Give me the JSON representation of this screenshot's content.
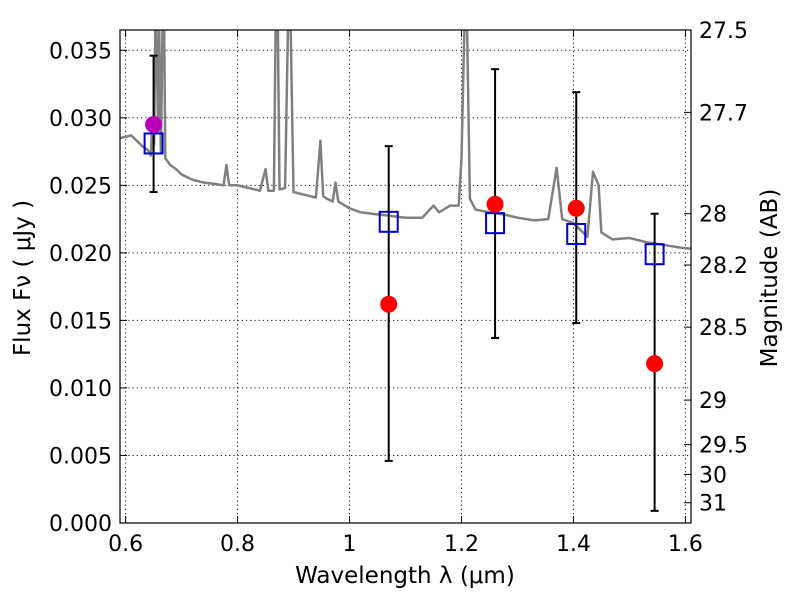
{
  "chart_data": {
    "type": "scatter",
    "xlabel": "Wavelength  λ (μm)",
    "ylabel_left": "Flux  Fν  ( μJy )",
    "ylabel_right": "Magnitude (AB)",
    "xlim": [
      0.59,
      1.61
    ],
    "ylim": [
      0.0,
      0.0365
    ],
    "x_ticks": [
      0.6,
      0.8,
      1.0,
      1.2,
      1.4,
      1.6
    ],
    "x_tick_labels": [
      "0.6",
      "0.8",
      "1",
      "1.2",
      "1.4",
      "1.6"
    ],
    "y_ticks": [
      0.0,
      0.005,
      0.01,
      0.015,
      0.02,
      0.025,
      0.03,
      0.035
    ],
    "y_tick_labels": [
      "0.000",
      "0.005",
      "0.010",
      "0.015",
      "0.020",
      "0.025",
      "0.030",
      "0.035"
    ],
    "right_ticks": [
      {
        "flux": 0.0365,
        "label": "27.5"
      },
      {
        "flux": 0.0304,
        "label": "27.7"
      },
      {
        "flux": 0.0229,
        "label": "28"
      },
      {
        "flux": 0.0191,
        "label": "28.2"
      },
      {
        "flux": 0.0145,
        "label": "28.5"
      },
      {
        "flux": 0.0091,
        "label": "29"
      },
      {
        "flux": 0.0058,
        "label": "29.5"
      },
      {
        "flux": 0.0036,
        "label": "30"
      },
      {
        "flux": 0.0015,
        "label": "31"
      }
    ],
    "grid": true,
    "series": [
      {
        "kind": "spectrum",
        "color": "#808080",
        "points": [
          [
            0.59,
            0.0285
          ],
          [
            0.61,
            0.0287
          ],
          [
            0.62,
            0.0283
          ],
          [
            0.63,
            0.0279
          ],
          [
            0.64,
            0.0276
          ],
          [
            0.645,
            0.0272
          ],
          [
            0.648,
            0.03
          ],
          [
            0.651,
            0.028
          ],
          [
            0.653,
            0.0365
          ],
          [
            0.655,
            0.0365
          ],
          [
            0.658,
            0.029
          ],
          [
            0.66,
            0.0365
          ],
          [
            0.663,
            0.0275
          ],
          [
            0.666,
            0.0365
          ],
          [
            0.669,
            0.0365
          ],
          [
            0.671,
            0.027
          ],
          [
            0.68,
            0.0265
          ],
          [
            0.69,
            0.0262
          ],
          [
            0.7,
            0.0258
          ],
          [
            0.72,
            0.0254
          ],
          [
            0.74,
            0.0252
          ],
          [
            0.76,
            0.0251
          ],
          [
            0.775,
            0.025
          ],
          [
            0.78,
            0.0265
          ],
          [
            0.785,
            0.025
          ],
          [
            0.8,
            0.025
          ],
          [
            0.82,
            0.0248
          ],
          [
            0.84,
            0.0246
          ],
          [
            0.85,
            0.0262
          ],
          [
            0.855,
            0.0246
          ],
          [
            0.865,
            0.0246
          ],
          [
            0.868,
            0.0365
          ],
          [
            0.872,
            0.0365
          ],
          [
            0.875,
            0.0247
          ],
          [
            0.885,
            0.0248
          ],
          [
            0.89,
            0.0365
          ],
          [
            0.895,
            0.0365
          ],
          [
            0.9,
            0.0245
          ],
          [
            0.92,
            0.0243
          ],
          [
            0.94,
            0.0241
          ],
          [
            0.948,
            0.0283
          ],
          [
            0.953,
            0.0242
          ],
          [
            0.96,
            0.024
          ],
          [
            0.97,
            0.0238
          ],
          [
            0.975,
            0.0252
          ],
          [
            0.98,
            0.0238
          ],
          [
            1.0,
            0.0233
          ],
          [
            1.02,
            0.023
          ],
          [
            1.04,
            0.0229
          ],
          [
            1.06,
            0.0228
          ],
          [
            1.1,
            0.0226
          ],
          [
            1.13,
            0.0226
          ],
          [
            1.15,
            0.0235
          ],
          [
            1.16,
            0.023
          ],
          [
            1.18,
            0.0235
          ],
          [
            1.195,
            0.0235
          ],
          [
            1.2,
            0.027
          ],
          [
            1.205,
            0.0365
          ],
          [
            1.21,
            0.0365
          ],
          [
            1.215,
            0.024
          ],
          [
            1.225,
            0.0232
          ],
          [
            1.25,
            0.023
          ],
          [
            1.28,
            0.0228
          ],
          [
            1.3,
            0.0226
          ],
          [
            1.33,
            0.0224
          ],
          [
            1.355,
            0.0225
          ],
          [
            1.37,
            0.0263
          ],
          [
            1.38,
            0.0225
          ],
          [
            1.4,
            0.0222
          ],
          [
            1.425,
            0.0212
          ],
          [
            1.435,
            0.026
          ],
          [
            1.445,
            0.025
          ],
          [
            1.45,
            0.0215
          ],
          [
            1.47,
            0.021
          ],
          [
            1.5,
            0.0211
          ],
          [
            1.53,
            0.0208
          ],
          [
            1.56,
            0.0206
          ],
          [
            1.59,
            0.0204
          ],
          [
            1.61,
            0.0203
          ]
        ]
      },
      {
        "kind": "model-boxes",
        "color": "#0000cc",
        "points": [
          [
            0.65,
            0.0281
          ],
          [
            1.07,
            0.0223
          ],
          [
            1.26,
            0.0222
          ],
          [
            1.405,
            0.0214
          ],
          [
            1.545,
            0.0199
          ]
        ]
      },
      {
        "kind": "observed",
        "color": "#ff0000",
        "points": [
          {
            "x": 1.07,
            "y": 0.0162,
            "err_low": 0.0046,
            "err_high": 0.0279
          },
          {
            "x": 1.26,
            "y": 0.0236,
            "err_low": 0.0137,
            "err_high": 0.0336
          },
          {
            "x": 1.405,
            "y": 0.0233,
            "err_low": 0.0148,
            "err_high": 0.0319
          },
          {
            "x": 1.545,
            "y": 0.0118,
            "err_low": 0.0009,
            "err_high": 0.0229
          }
        ]
      },
      {
        "kind": "observed-first",
        "color": "#bb00bb",
        "points": [
          {
            "x": 0.65,
            "y": 0.0295,
            "err_low": 0.0245,
            "err_high": 0.0346
          }
        ]
      }
    ]
  }
}
